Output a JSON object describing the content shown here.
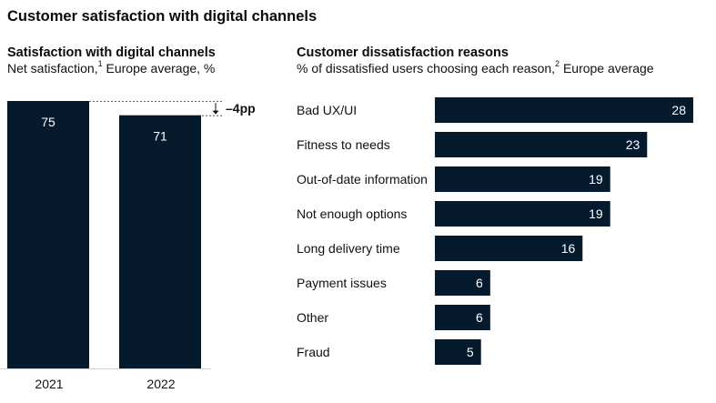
{
  "title": "Customer satisfaction with digital channels",
  "chart_data": [
    {
      "type": "bar",
      "title": "Satisfaction with digital channels",
      "subtitle_pre": "Net satisfaction,",
      "subtitle_sup": "1",
      "subtitle_post": " Europe average, %",
      "categories": [
        "2021",
        "2022"
      ],
      "values": [
        75,
        71
      ],
      "annotation": "–4pp",
      "ylim": [
        0,
        75
      ]
    },
    {
      "type": "bar",
      "orientation": "horizontal",
      "title": "Customer dissatisfaction reasons",
      "subtitle_pre": "% of dissatisfied users choosing each reason,",
      "subtitle_sup": "2",
      "subtitle_post": " Europe average",
      "categories": [
        "Bad UX/UI",
        "Fitness to needs",
        "Out-of-date information",
        "Not enough options",
        "Long delivery time",
        "Payment issues",
        "Other",
        "Fraud"
      ],
      "values": [
        28,
        23,
        19,
        19,
        16,
        6,
        6,
        5
      ],
      "xlim": [
        0,
        28
      ]
    }
  ],
  "colors": {
    "bar": "#061a2e",
    "label_on_bar": "#ffffff"
  }
}
